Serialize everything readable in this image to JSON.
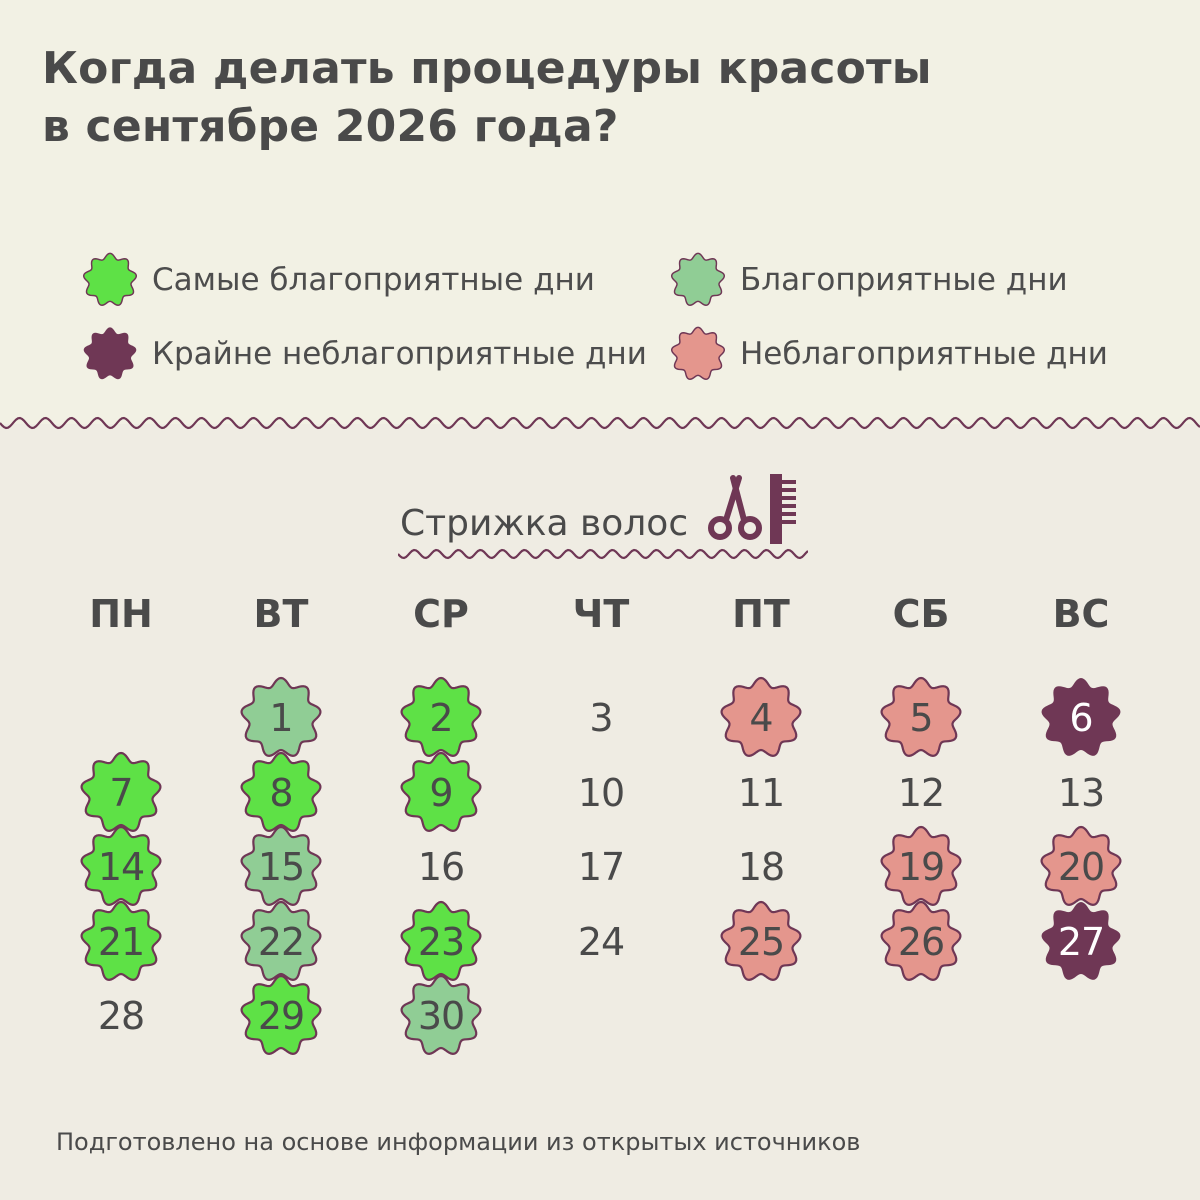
{
  "title": {
    "line1": "Когда делать процедуры красоты",
    "line2": "в сентябре 2026 года?"
  },
  "colors": {
    "best": "#5ee146",
    "good": "#90cd95",
    "bad": "#e4968d",
    "very_bad": "#6f3755",
    "outline": "#6f3755",
    "background_top": "#f2f1e4",
    "background_bottom": "#efece3"
  },
  "legend": [
    {
      "key": "best",
      "label": "Самые благоприятные дни"
    },
    {
      "key": "good",
      "label": "Благоприятные дни"
    },
    {
      "key": "very_bad",
      "label": "Крайне неблагоприятные дни"
    },
    {
      "key": "bad",
      "label": "Неблагоприятные дни"
    }
  ],
  "section": {
    "title": "Стрижка волос",
    "icon": "scissors-and-comb-icon"
  },
  "weekdays": [
    "ПН",
    "ВТ",
    "СР",
    "ЧТ",
    "ПТ",
    "СБ",
    "ВС"
  ],
  "calendar": {
    "month": "сентябрь 2026",
    "first_weekday_index": 1,
    "days": [
      {
        "day": "1",
        "status": "good"
      },
      {
        "day": "2",
        "status": "best"
      },
      {
        "day": "3",
        "status": "none"
      },
      {
        "day": "4",
        "status": "bad"
      },
      {
        "day": "5",
        "status": "bad"
      },
      {
        "day": "6",
        "status": "very_bad"
      },
      {
        "day": "7",
        "status": "best"
      },
      {
        "day": "8",
        "status": "best"
      },
      {
        "day": "9",
        "status": "best"
      },
      {
        "day": "10",
        "status": "none"
      },
      {
        "day": "11",
        "status": "none"
      },
      {
        "day": "12",
        "status": "none"
      },
      {
        "day": "13",
        "status": "none"
      },
      {
        "day": "14",
        "status": "best"
      },
      {
        "day": "15",
        "status": "good"
      },
      {
        "day": "16",
        "status": "none"
      },
      {
        "day": "17",
        "status": "none"
      },
      {
        "day": "18",
        "status": "none"
      },
      {
        "day": "19",
        "status": "bad"
      },
      {
        "day": "20",
        "status": "bad"
      },
      {
        "day": "21",
        "status": "best"
      },
      {
        "day": "22",
        "status": "good"
      },
      {
        "day": "23",
        "status": "best"
      },
      {
        "day": "24",
        "status": "none"
      },
      {
        "day": "25",
        "status": "bad"
      },
      {
        "day": "26",
        "status": "bad"
      },
      {
        "day": "27",
        "status": "very_bad"
      },
      {
        "day": "28",
        "status": "none"
      },
      {
        "day": "29",
        "status": "best"
      },
      {
        "day": "30",
        "status": "good"
      }
    ]
  },
  "footer": "Подготовлено на основе информации из открытых источников"
}
